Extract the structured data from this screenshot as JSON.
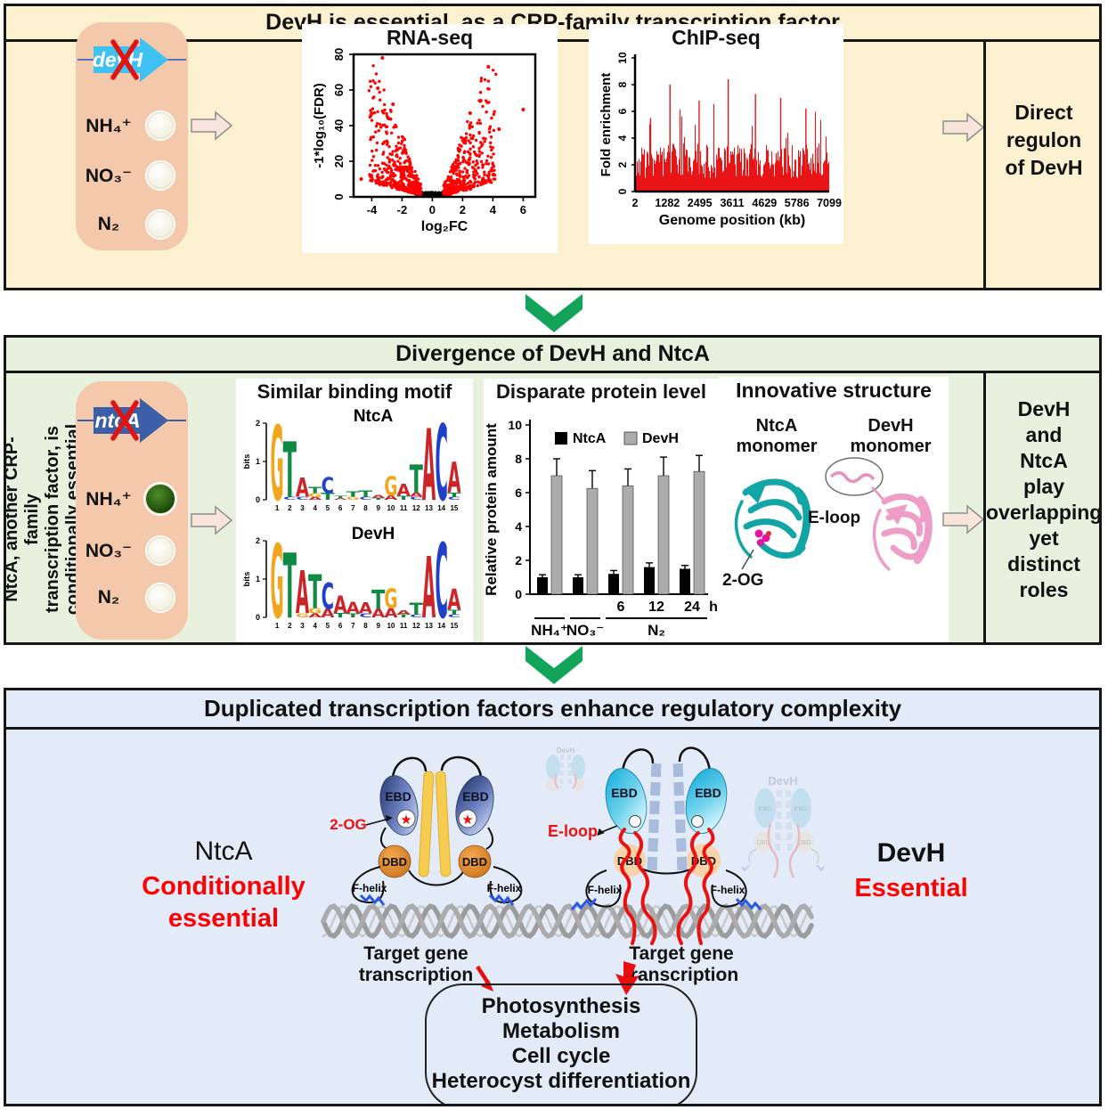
{
  "top": {
    "title": "DevH is essential, as a CRP-family transcription factor",
    "mutant_gene": "devH",
    "conditions": [
      "NH₄⁺",
      "NO₃⁻",
      "N₂"
    ],
    "conclusion": "Direct\nregulon\nof DevH"
  },
  "middle": {
    "title": "Divergence of DevH and NtcA",
    "side_note": "NtcA, another CRP-family\ntranscription factor, is\nconditionally essential",
    "mutant_gene": "ntcA",
    "conditions": [
      "NH₄⁺",
      "NO₃⁻",
      "N₂"
    ],
    "cards": {
      "motif_title": "Similar binding motif",
      "protein_title": "Disparate protein level",
      "structure_title": "Innovative structure",
      "ntca_monomer": "NtcA\nmonomer",
      "devh_monomer": "DevH\nmonomer",
      "ligand_label": "2-OG",
      "eloop_label": "E-loop"
    },
    "conclusion": "DevH\nand\nNtcA\nplay\noverlapping\nyet\ndistinct\nroles"
  },
  "bottom": {
    "title": "Duplicated transcription factors enhance regulatory complexity",
    "ntca": {
      "name": "NtcA",
      "status": "Conditionally\nessential",
      "ligand": "2-OG",
      "target": "Target gene transcription"
    },
    "devh": {
      "name": "DevH",
      "status": "Essential",
      "loop": "E-loop",
      "target": "Target gene transcription",
      "ghost": "DevH"
    },
    "domains": {
      "ebd": "EBD",
      "dbd": "DBD",
      "fhelix": "F-helix"
    },
    "outcomes": "Photosynthesis\nMetabolism\nCell cycle\nHeterocyst differentiation\n..........."
  },
  "colors": {
    "panel_top_bg": "#FBF0D0",
    "panel_mid_bg": "#E8F1DE",
    "panel_bot_bg": "#E2EBF7",
    "mutant_box": "#F3C8AB",
    "devh_gene_arrow": "#3FC2F1",
    "ntca_gene_arrow": "#3D5FA8",
    "green_chevron": "#12A559",
    "flow_arrow_fill": "#F9E4DC",
    "red_accent": "#EE1111",
    "ntca_coil": "#F5CB50",
    "ntca_dbd": "#E8923B",
    "devh_coil": "#A9BBDC",
    "devh_dbd": "#F8D2A9",
    "dna": "#9C9C9C",
    "ntca_ribbon": "#12A5A5",
    "devh_ribbon": "#EE9EC6"
  },
  "logo_colors": {
    "A": "#CC2529",
    "C": "#2040C8",
    "G": "#F2A61D",
    "T": "#0F8A43"
  },
  "chart_data": [
    {
      "id": "volcano",
      "type": "scatter",
      "title": "RNA-seq",
      "xlabel": "log₂FC",
      "ylabel": "-1*log₁₀(FDR)",
      "xlim": [
        -5.2,
        6.8
      ],
      "ylim": [
        0,
        80
      ],
      "xticks": [
        -4,
        -2,
        0,
        2,
        4,
        6
      ],
      "yticks": [
        0,
        20,
        40,
        60,
        80
      ],
      "sig_color": "#FF0000",
      "ns_color": "#000000",
      "n_sig": 870,
      "n_ns": 540,
      "outliers": [
        [
          -3.3,
          78
        ],
        [
          3.7,
          73
        ],
        [
          6.0,
          49
        ],
        [
          -3.6,
          61
        ],
        [
          3.2,
          54
        ],
        [
          -4.7,
          10
        ],
        [
          4.4,
          38
        ],
        [
          -2.9,
          44
        ],
        [
          2.5,
          47
        ],
        [
          -2.6,
          52
        ]
      ]
    },
    {
      "id": "chipseq",
      "type": "area",
      "title": "ChIP-seq",
      "xlabel": "Genome position (kb)",
      "ylabel": "Fold enrichment",
      "ylim": [
        0,
        10
      ],
      "yticks": [
        0,
        2,
        4,
        6,
        8,
        10
      ],
      "xticks": [
        "2",
        "1282",
        "2495",
        "3611",
        "4629",
        "5786",
        "7099"
      ],
      "color": "#E81417",
      "baseline_range": [
        1.0,
        3.6
      ],
      "peaks": [
        [
          0.08,
          5.5
        ],
        [
          0.18,
          8.0
        ],
        [
          0.33,
          6.8
        ],
        [
          0.48,
          8.4
        ],
        [
          0.62,
          7.3
        ],
        [
          0.75,
          7.0
        ],
        [
          0.88,
          6.2
        ]
      ]
    },
    {
      "id": "bars",
      "type": "bar",
      "title": "Disparate protein level",
      "ylabel": "Relative protein amount",
      "ylim": [
        0,
        10
      ],
      "yticks": [
        0,
        2,
        4,
        6,
        8,
        10
      ],
      "legend": [
        "NtcA",
        "DevH"
      ],
      "legend_colors": [
        "#000000",
        "#ACACAC"
      ],
      "group_labels": [
        "NH₄⁺",
        "NO₃⁻",
        "N₂"
      ],
      "time_labels": [
        "6",
        "12",
        "24"
      ],
      "time_unit": "h",
      "series": [
        {
          "name": "NtcA",
          "color": "#000000",
          "values": [
            1.0,
            1.0,
            1.2,
            1.6,
            1.5
          ],
          "errors": [
            0.15,
            0.15,
            0.2,
            0.25,
            0.2
          ]
        },
        {
          "name": "DevH",
          "color": "#ACACAC",
          "values": [
            7.0,
            6.25,
            6.4,
            7.0,
            7.25
          ],
          "errors": [
            1.0,
            1.05,
            1.0,
            1.1,
            0.95
          ]
        }
      ]
    },
    {
      "id": "logo_ntca",
      "type": "sequence_logo",
      "title": "NtcA",
      "ylabel": "bits",
      "ylim": [
        0,
        2
      ],
      "positions": [
        1,
        2,
        3,
        4,
        5,
        6,
        7,
        8,
        9,
        10,
        11,
        12,
        13,
        14,
        15
      ],
      "stacks": [
        [
          [
            "G",
            1.95
          ]
        ],
        [
          [
            "T",
            1.45
          ],
          [
            "C",
            0.07
          ]
        ],
        [
          [
            "A",
            0.5
          ],
          [
            "C",
            0.08
          ]
        ],
        [
          [
            "T",
            0.16
          ],
          [
            "G",
            0.1
          ],
          [
            "A",
            0.07
          ]
        ],
        [
          [
            "C",
            0.42
          ],
          [
            "T",
            0.18
          ]
        ],
        [
          [
            "T",
            0.06
          ],
          [
            "A",
            0.05
          ]
        ],
        [
          [
            "T",
            0.14
          ],
          [
            "G",
            0.08
          ]
        ],
        [
          [
            "T",
            0.16
          ],
          [
            "C",
            0.08
          ]
        ],
        [
          [
            "A",
            0.07
          ],
          [
            "T",
            0.05
          ]
        ],
        [
          [
            "G",
            0.5
          ],
          [
            "A",
            0.12
          ]
        ],
        [
          [
            "A",
            0.32
          ],
          [
            "T",
            0.1
          ]
        ],
        [
          [
            "T",
            0.72
          ],
          [
            "A",
            0.12
          ],
          [
            "C",
            0.08
          ]
        ],
        [
          [
            "A",
            1.88
          ]
        ],
        [
          [
            "C",
            1.98
          ]
        ],
        [
          [
            "A",
            0.8
          ],
          [
            "T",
            0.12
          ],
          [
            "C",
            0.07
          ]
        ]
      ]
    },
    {
      "id": "logo_devh",
      "type": "sequence_logo",
      "title": "DevH",
      "ylabel": "bits",
      "ylim": [
        0,
        2
      ],
      "positions": [
        1,
        2,
        3,
        4,
        5,
        6,
        7,
        8,
        9,
        10,
        11,
        12,
        13,
        14,
        15
      ],
      "stacks": [
        [
          [
            "G",
            1.92
          ]
        ],
        [
          [
            "T",
            1.7
          ]
        ],
        [
          [
            "A",
            1.12
          ],
          [
            "G",
            0.1
          ]
        ],
        [
          [
            "T",
            0.88
          ],
          [
            "G",
            0.14
          ],
          [
            "A",
            0.1
          ]
        ],
        [
          [
            "C",
            0.68
          ],
          [
            "A",
            0.22
          ]
        ],
        [
          [
            "A",
            0.45
          ],
          [
            "T",
            0.12
          ]
        ],
        [
          [
            "A",
            0.3
          ],
          [
            "T",
            0.1
          ]
        ],
        [
          [
            "A",
            0.28
          ],
          [
            "C",
            0.1
          ]
        ],
        [
          [
            "T",
            0.5
          ],
          [
            "A",
            0.22
          ]
        ],
        [
          [
            "G",
            0.52
          ],
          [
            "A",
            0.24
          ]
        ],
        [
          [
            "A",
            0.1
          ],
          [
            "T",
            0.08
          ]
        ],
        [
          [
            "T",
            0.3
          ],
          [
            "C",
            0.08
          ]
        ],
        [
          [
            "A",
            1.6
          ]
        ],
        [
          [
            "C",
            1.95
          ]
        ],
        [
          [
            "A",
            0.55
          ],
          [
            "T",
            0.12
          ],
          [
            "C",
            0.08
          ]
        ]
      ]
    }
  ]
}
